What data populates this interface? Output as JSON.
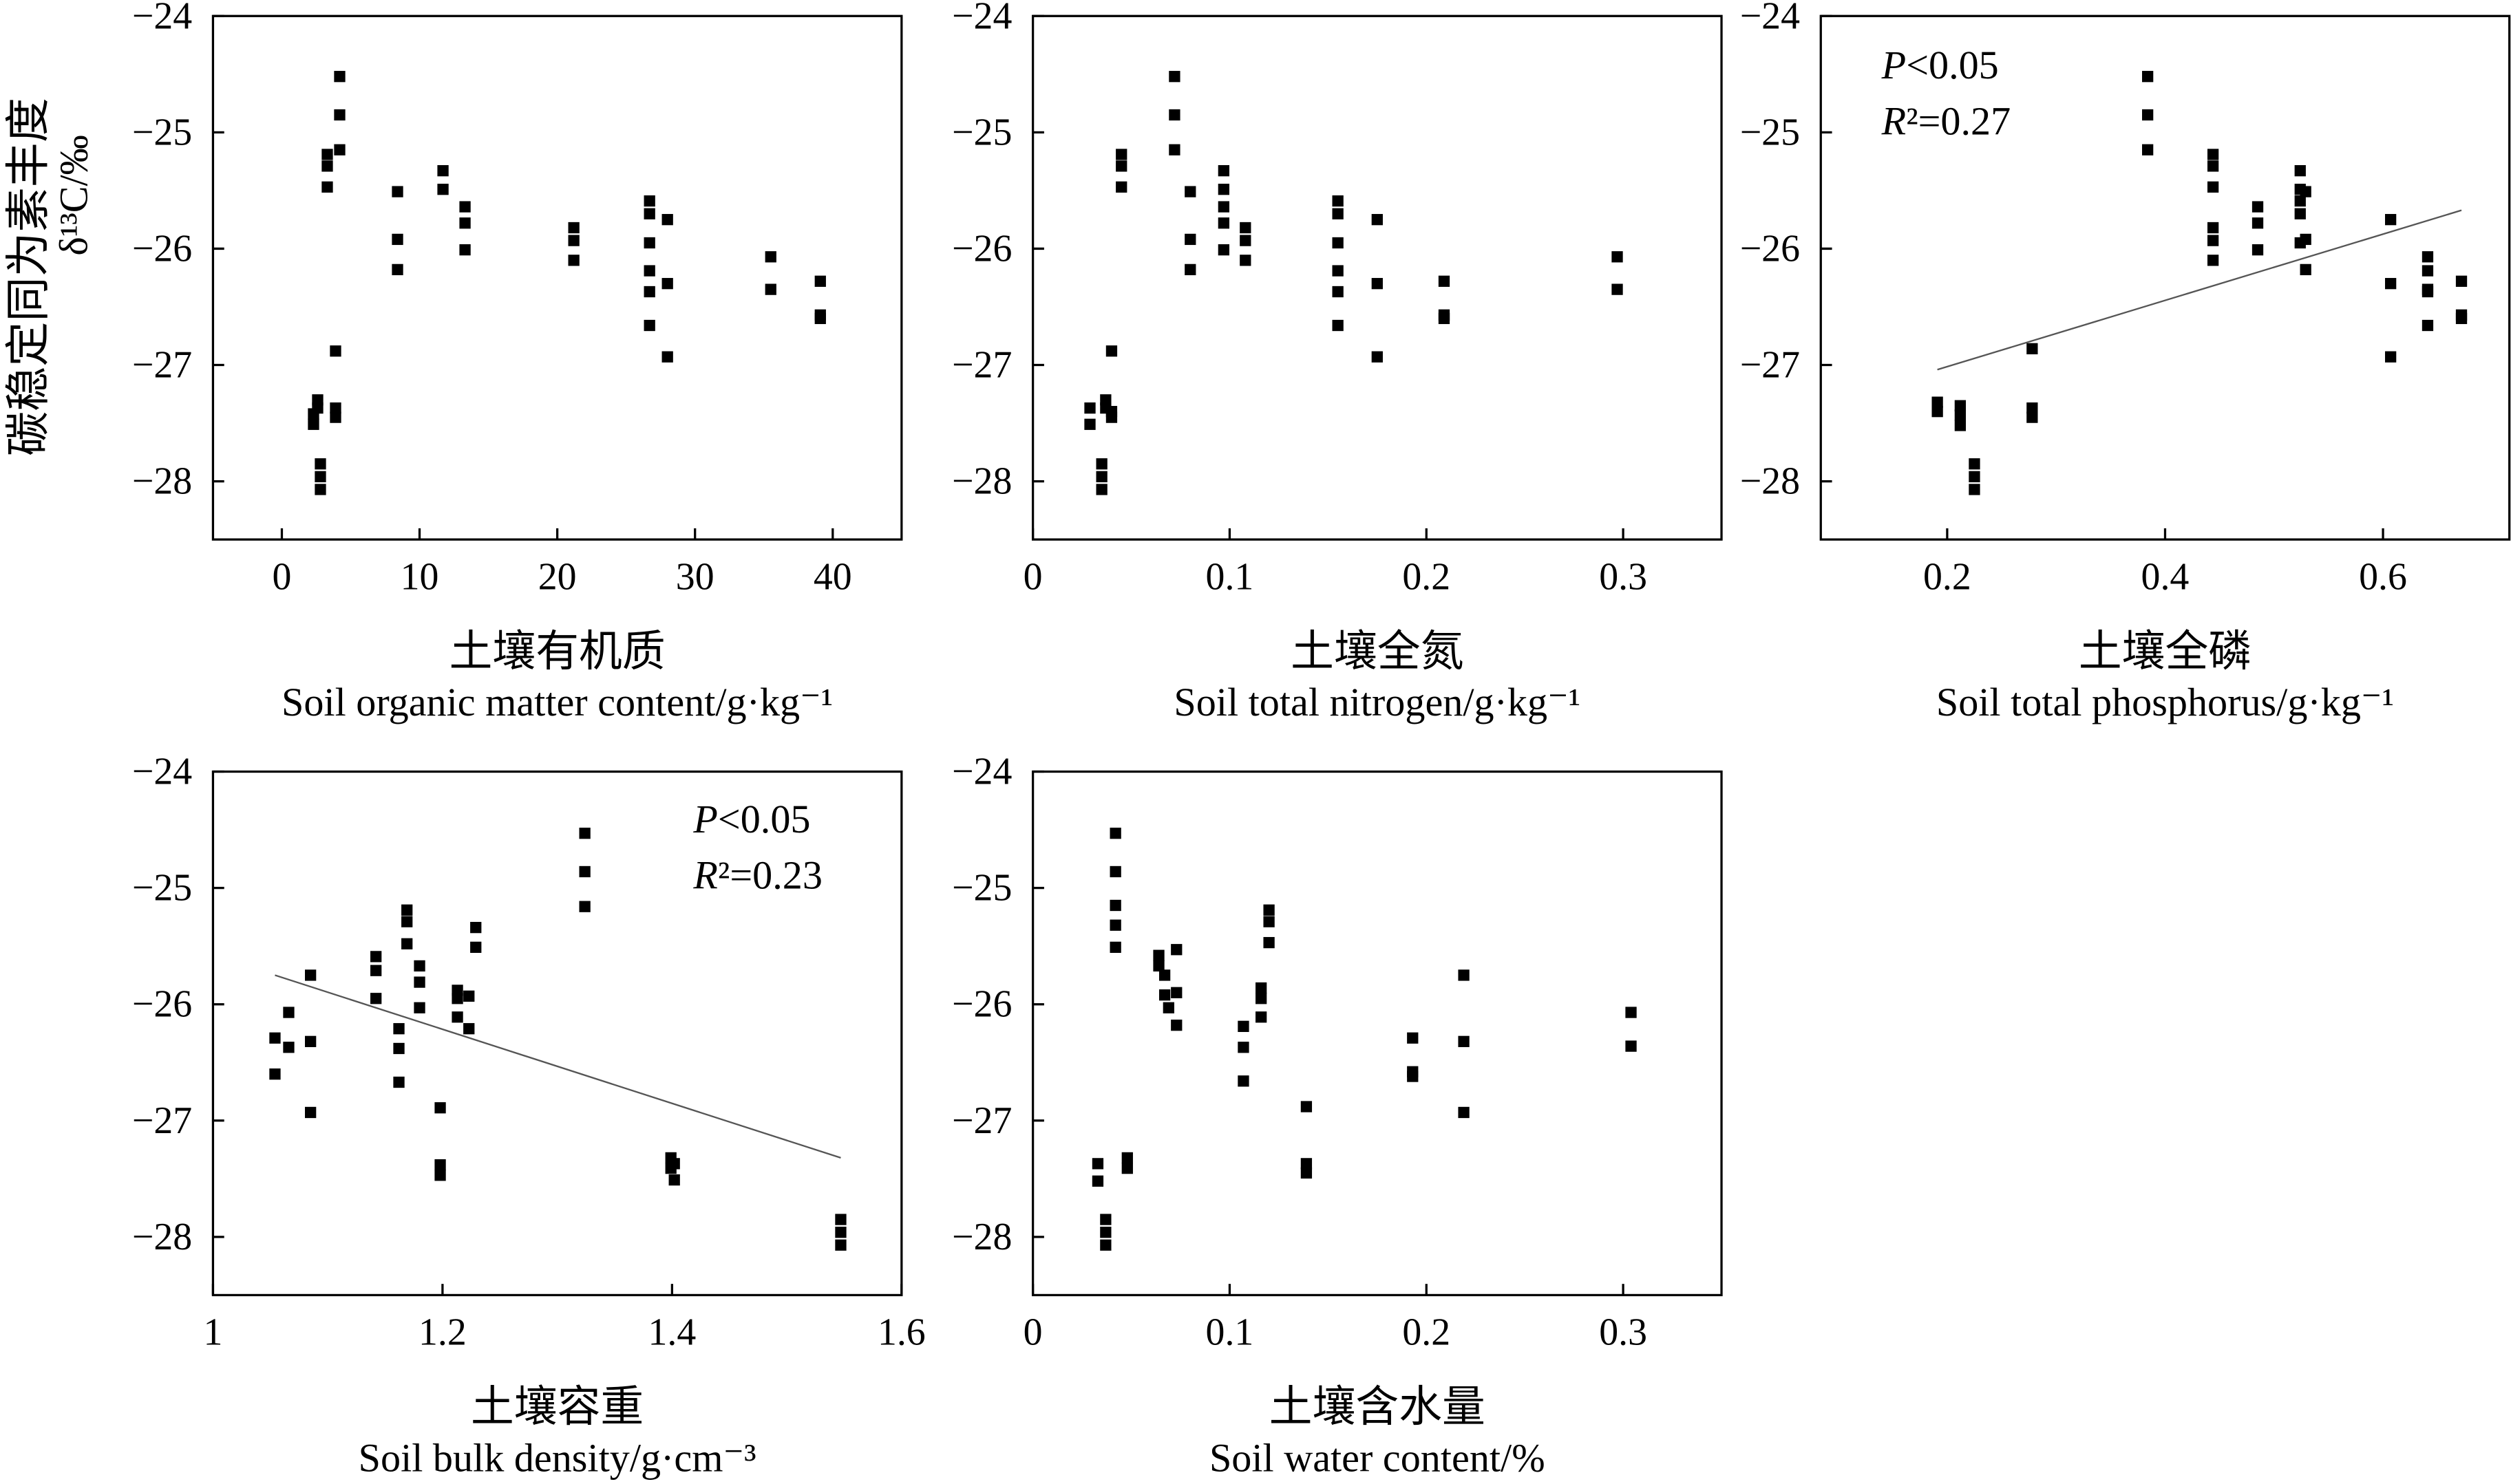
{
  "ylabel": {
    "zh": "碳稳定同为素丰度",
    "en": "δ¹³C/‰"
  },
  "colors": {
    "point": "#000000",
    "trend_line": "#555555",
    "axis": "#000000"
  },
  "grid": false,
  "legend": false,
  "chart_data": [
    {
      "type": "scatter",
      "xlabel_zh": "土壤有机质",
      "xlabel_en": "Soil organic matter content/g·kg⁻¹",
      "xlim": [
        -5,
        45
      ],
      "ylim": [
        -28.5,
        -24
      ],
      "xticks": [
        0,
        10,
        20,
        30,
        40
      ],
      "xtick_labels": [
        "0",
        "10",
        "20",
        "30",
        "40"
      ],
      "yticks": [
        -24,
        -25,
        -26,
        -27,
        -28
      ],
      "ytick_labels": [
        "−24",
        "−25",
        "−26",
        "−27",
        "−28"
      ],
      "points": [
        [
          2.3,
          -27.42
        ],
        [
          2.3,
          -27.51
        ],
        [
          2.6,
          -27.3
        ],
        [
          2.6,
          -27.37
        ],
        [
          2.8,
          -27.85
        ],
        [
          2.8,
          -27.96
        ],
        [
          2.8,
          -28.07
        ],
        [
          3.3,
          -25.19
        ],
        [
          3.3,
          -25.29
        ],
        [
          3.3,
          -25.47
        ],
        [
          3.9,
          -26.88
        ],
        [
          3.9,
          -27.37
        ],
        [
          3.9,
          -27.45
        ],
        [
          4.2,
          -24.52
        ],
        [
          4.2,
          -24.85
        ],
        [
          4.2,
          -25.15
        ],
        [
          8.4,
          -25.51
        ],
        [
          8.4,
          -25.92
        ],
        [
          8.4,
          -26.18
        ],
        [
          11.7,
          -25.33
        ],
        [
          11.7,
          -25.49
        ],
        [
          13.3,
          -25.64
        ],
        [
          13.3,
          -25.78
        ],
        [
          13.3,
          -26.01
        ],
        [
          21.2,
          -25.82
        ],
        [
          21.2,
          -25.93
        ],
        [
          21.2,
          -26.1
        ],
        [
          26.7,
          -25.59
        ],
        [
          26.7,
          -25.7
        ],
        [
          26.7,
          -25.95
        ],
        [
          26.7,
          -26.19
        ],
        [
          26.7,
          -26.37
        ],
        [
          26.7,
          -26.66
        ],
        [
          28.0,
          -25.75
        ],
        [
          28.0,
          -26.3
        ],
        [
          28.0,
          -26.93
        ],
        [
          35.5,
          -26.07
        ],
        [
          35.5,
          -26.35
        ],
        [
          39.1,
          -26.28
        ],
        [
          39.1,
          -26.57
        ],
        [
          39.1,
          -26.6
        ]
      ],
      "trend_line": null,
      "annotations": []
    },
    {
      "type": "scatter",
      "xlabel_zh": "土壤全氮",
      "xlabel_en": "Soil total nitrogen/g·kg⁻¹",
      "xlim": [
        0,
        0.35
      ],
      "ylim": [
        -28.5,
        -24
      ],
      "xticks": [
        0,
        0.1,
        0.2,
        0.3
      ],
      "xtick_labels": [
        "0",
        "0.1",
        "0.2",
        "0.3"
      ],
      "yticks": [
        -24,
        -25,
        -26,
        -27,
        -28
      ],
      "ytick_labels": [
        "−24",
        "−25",
        "−26",
        "−27",
        "−28"
      ],
      "points": [
        [
          0.029,
          -27.37
        ],
        [
          0.029,
          -27.51
        ],
        [
          0.035,
          -27.85
        ],
        [
          0.035,
          -27.96
        ],
        [
          0.035,
          -28.07
        ],
        [
          0.037,
          -27.3
        ],
        [
          0.037,
          -27.37
        ],
        [
          0.04,
          -26.88
        ],
        [
          0.04,
          -27.4
        ],
        [
          0.04,
          -27.45
        ],
        [
          0.045,
          -25.19
        ],
        [
          0.045,
          -25.29
        ],
        [
          0.045,
          -25.47
        ],
        [
          0.072,
          -24.52
        ],
        [
          0.072,
          -24.85
        ],
        [
          0.072,
          -25.15
        ],
        [
          0.08,
          -25.51
        ],
        [
          0.08,
          -25.92
        ],
        [
          0.08,
          -26.18
        ],
        [
          0.097,
          -25.33
        ],
        [
          0.097,
          -25.49
        ],
        [
          0.097,
          -25.64
        ],
        [
          0.097,
          -25.78
        ],
        [
          0.097,
          -26.01
        ],
        [
          0.108,
          -25.82
        ],
        [
          0.108,
          -25.93
        ],
        [
          0.108,
          -26.1
        ],
        [
          0.155,
          -25.59
        ],
        [
          0.155,
          -25.7
        ],
        [
          0.155,
          -25.95
        ],
        [
          0.155,
          -26.19
        ],
        [
          0.155,
          -26.37
        ],
        [
          0.155,
          -26.66
        ],
        [
          0.175,
          -25.75
        ],
        [
          0.175,
          -26.3
        ],
        [
          0.175,
          -26.93
        ],
        [
          0.209,
          -26.28
        ],
        [
          0.209,
          -26.57
        ],
        [
          0.209,
          -26.6
        ],
        [
          0.297,
          -26.07
        ],
        [
          0.297,
          -26.35
        ]
      ],
      "trend_line": null,
      "annotations": []
    },
    {
      "type": "scatter",
      "xlabel_zh": "土壤全磷",
      "xlabel_en": "Soil total phosphorus/g·kg⁻¹",
      "xlim": [
        0.084,
        0.716
      ],
      "ylim": [
        -28.5,
        -24
      ],
      "xticks": [
        0.2,
        0.4,
        0.6
      ],
      "xtick_labels": [
        "0.2",
        "0.4",
        "0.6"
      ],
      "yticks": [
        -24,
        -25,
        -26,
        -27,
        -28
      ],
      "ytick_labels": [
        "−24",
        "−25",
        "−26",
        "−27",
        "−28"
      ],
      "points": [
        [
          0.191,
          -27.32
        ],
        [
          0.191,
          -27.4
        ],
        [
          0.212,
          -27.35
        ],
        [
          0.212,
          -27.43
        ],
        [
          0.212,
          -27.52
        ],
        [
          0.225,
          -27.85
        ],
        [
          0.225,
          -27.96
        ],
        [
          0.225,
          -28.07
        ],
        [
          0.278,
          -26.86
        ],
        [
          0.278,
          -27.37
        ],
        [
          0.278,
          -27.45
        ],
        [
          0.384,
          -24.52
        ],
        [
          0.384,
          -24.85
        ],
        [
          0.384,
          -25.15
        ],
        [
          0.444,
          -25.19
        ],
        [
          0.444,
          -25.29
        ],
        [
          0.444,
          -25.47
        ],
        [
          0.444,
          -25.82
        ],
        [
          0.444,
          -25.93
        ],
        [
          0.444,
          -26.1
        ],
        [
          0.485,
          -25.64
        ],
        [
          0.485,
          -25.78
        ],
        [
          0.485,
          -26.01
        ],
        [
          0.524,
          -25.33
        ],
        [
          0.524,
          -25.49
        ],
        [
          0.524,
          -25.59
        ],
        [
          0.524,
          -25.7
        ],
        [
          0.524,
          -25.95
        ],
        [
          0.529,
          -25.51
        ],
        [
          0.529,
          -25.92
        ],
        [
          0.529,
          -26.18
        ],
        [
          0.607,
          -25.75
        ],
        [
          0.607,
          -26.3
        ],
        [
          0.607,
          -26.93
        ],
        [
          0.641,
          -26.07
        ],
        [
          0.641,
          -26.19
        ],
        [
          0.641,
          -26.35
        ],
        [
          0.641,
          -26.37
        ],
        [
          0.641,
          -26.66
        ],
        [
          0.672,
          -26.28
        ],
        [
          0.672,
          -26.57
        ],
        [
          0.672,
          -26.6
        ]
      ],
      "trend_line": {
        "x": [
          0.191,
          0.672
        ],
        "y": [
          -27.04,
          -25.67
        ]
      },
      "annotations": [
        {
          "italic": "P",
          "text": "<0.05"
        },
        {
          "italic": "R",
          "text": "²=0.27"
        }
      ]
    },
    {
      "type": "scatter",
      "xlabel_zh": "土壤容重",
      "xlabel_en": "Soil bulk density/g·cm⁻³",
      "xlim": [
        1,
        1.6
      ],
      "ylim": [
        -28.5,
        -24
      ],
      "xticks": [
        1,
        1.2,
        1.4,
        1.6
      ],
      "xtick_labels": [
        "1",
        "1.2",
        "1.4",
        "1.6"
      ],
      "yticks": [
        -24,
        -25,
        -26,
        -27,
        -28
      ],
      "ytick_labels": [
        "−24",
        "−25",
        "−26",
        "−27",
        "−28"
      ],
      "points": [
        [
          1.054,
          -26.29
        ],
        [
          1.054,
          -26.6
        ],
        [
          1.066,
          -26.07
        ],
        [
          1.066,
          -26.37
        ],
        [
          1.085,
          -25.75
        ],
        [
          1.085,
          -26.32
        ],
        [
          1.085,
          -26.93
        ],
        [
          1.142,
          -25.59
        ],
        [
          1.142,
          -25.71
        ],
        [
          1.142,
          -25.95
        ],
        [
          1.162,
          -26.21
        ],
        [
          1.162,
          -26.38
        ],
        [
          1.162,
          -26.67
        ],
        [
          1.169,
          -25.19
        ],
        [
          1.169,
          -25.29
        ],
        [
          1.169,
          -25.48
        ],
        [
          1.18,
          -25.67
        ],
        [
          1.18,
          -25.81
        ],
        [
          1.18,
          -26.03
        ],
        [
          1.198,
          -26.89
        ],
        [
          1.198,
          -27.38
        ],
        [
          1.198,
          -27.47
        ],
        [
          1.213,
          -25.88
        ],
        [
          1.213,
          -25.95
        ],
        [
          1.213,
          -26.11
        ],
        [
          1.223,
          -25.93
        ],
        [
          1.223,
          -26.21
        ],
        [
          1.229,
          -25.34
        ],
        [
          1.229,
          -25.51
        ],
        [
          1.324,
          -24.53
        ],
        [
          1.324,
          -24.86
        ],
        [
          1.324,
          -25.16
        ],
        [
          1.399,
          -27.32
        ],
        [
          1.399,
          -27.41
        ],
        [
          1.402,
          -27.37
        ],
        [
          1.402,
          -27.51
        ],
        [
          1.547,
          -27.85
        ],
        [
          1.547,
          -27.96
        ],
        [
          1.547,
          -28.07
        ]
      ],
      "trend_line": {
        "x": [
          1.054,
          1.547
        ],
        "y": [
          -25.75,
          -27.32
        ]
      },
      "annotations": [
        {
          "italic": "P",
          "text": "<0.05"
        },
        {
          "italic": "R",
          "text": "²=0.23"
        }
      ]
    },
    {
      "type": "scatter",
      "xlabel_zh": "土壤含水量",
      "xlabel_en": "Soil water content/%",
      "xlim": [
        0,
        0.35
      ],
      "ylim": [
        -28.5,
        -24
      ],
      "xticks": [
        0,
        0.1,
        0.2,
        0.3
      ],
      "xtick_labels": [
        "0",
        "0.1",
        "0.2",
        "0.3"
      ],
      "yticks": [
        -24,
        -25,
        -26,
        -27,
        -28
      ],
      "ytick_labels": [
        "−24",
        "−25",
        "−26",
        "−27",
        "−28"
      ],
      "points": [
        [
          0.033,
          -27.37
        ],
        [
          0.033,
          -27.52
        ],
        [
          0.037,
          -27.85
        ],
        [
          0.037,
          -27.96
        ],
        [
          0.037,
          -28.07
        ],
        [
          0.042,
          -24.53
        ],
        [
          0.042,
          -24.86
        ],
        [
          0.042,
          -25.15
        ],
        [
          0.042,
          -25.32
        ],
        [
          0.042,
          -25.51
        ],
        [
          0.048,
          -27.32
        ],
        [
          0.048,
          -27.41
        ],
        [
          0.064,
          -25.58
        ],
        [
          0.064,
          -25.67
        ],
        [
          0.067,
          -25.75
        ],
        [
          0.067,
          -25.92
        ],
        [
          0.069,
          -26.03
        ],
        [
          0.073,
          -25.53
        ],
        [
          0.073,
          -25.9
        ],
        [
          0.073,
          -26.18
        ],
        [
          0.107,
          -26.19
        ],
        [
          0.107,
          -26.37
        ],
        [
          0.107,
          -26.66
        ],
        [
          0.116,
          -25.86
        ],
        [
          0.116,
          -25.95
        ],
        [
          0.116,
          -26.11
        ],
        [
          0.12,
          -25.19
        ],
        [
          0.12,
          -25.29
        ],
        [
          0.12,
          -25.47
        ],
        [
          0.139,
          -26.88
        ],
        [
          0.139,
          -27.37
        ],
        [
          0.139,
          -27.45
        ],
        [
          0.193,
          -26.29
        ],
        [
          0.193,
          -26.58
        ],
        [
          0.193,
          -26.62
        ],
        [
          0.219,
          -25.75
        ],
        [
          0.219,
          -26.32
        ],
        [
          0.219,
          -26.93
        ],
        [
          0.304,
          -26.07
        ],
        [
          0.304,
          -26.36
        ]
      ],
      "trend_line": null,
      "annotations": []
    }
  ]
}
